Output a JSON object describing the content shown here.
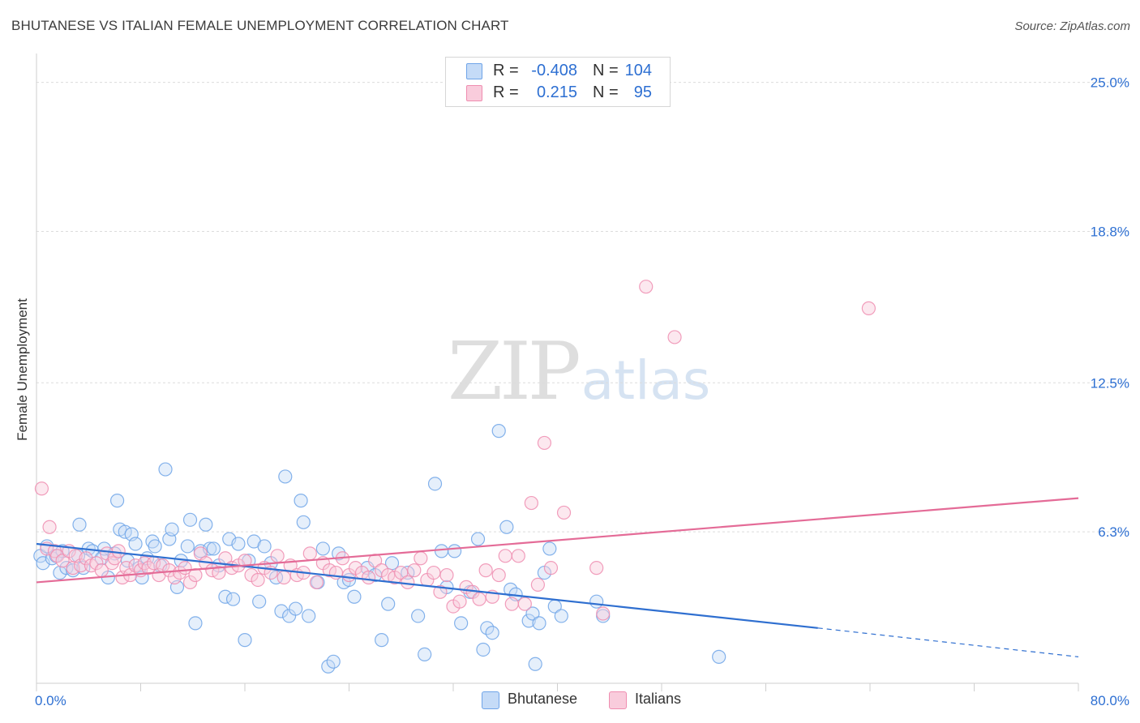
{
  "title": "BHUTANESE VS ITALIAN FEMALE UNEMPLOYMENT CORRELATION CHART",
  "source": "Source: ZipAtlas.com",
  "watermark": {
    "zip": "ZIP",
    "atlas": "atlas"
  },
  "legend": {
    "r_label": "R =",
    "n_label": "N =",
    "rows": [
      {
        "r": "-0.408",
        "n": "104",
        "color": "#6fa4e8",
        "fill": "#c5dbf7"
      },
      {
        "r": "0.215",
        "n": "95",
        "color": "#ef8db0",
        "fill": "#f9ccdc"
      }
    ]
  },
  "bottom_legend": [
    "Bhutanese",
    "Italians"
  ],
  "chart_data": {
    "type": "scatter",
    "title": "BHUTANESE VS ITALIAN FEMALE UNEMPLOYMENT CORRELATION CHART",
    "xlabel": "",
    "ylabel": "Female Unemployment",
    "xlim": [
      0,
      80
    ],
    "ylim": [
      0,
      26.2
    ],
    "x_tick_labels": [
      "0.0%",
      "80.0%"
    ],
    "y_ticks": [
      6.3,
      12.5,
      18.8,
      25.0
    ],
    "y_tick_labels": [
      "6.3%",
      "12.5%",
      "18.8%",
      "25.0%"
    ],
    "grid": true,
    "legend_position": "top-center",
    "series": [
      {
        "name": "Bhutanese",
        "color": "#6fa4e8",
        "fill": "#c5dbf7",
        "trend": {
          "x": [
            0,
            60,
            80
          ],
          "y": [
            5.8,
            2.3,
            1.1
          ],
          "solid_until": 60
        },
        "points": [
          [
            0.3,
            5.3
          ],
          [
            0.5,
            5.0
          ],
          [
            0.8,
            5.7
          ],
          [
            1.2,
            5.2
          ],
          [
            1.5,
            5.3
          ],
          [
            1.8,
            4.6
          ],
          [
            2.0,
            5.5
          ],
          [
            2.3,
            4.8
          ],
          [
            2.8,
            4.7
          ],
          [
            3.2,
            5.3
          ],
          [
            3.3,
            6.6
          ],
          [
            3.6,
            4.8
          ],
          [
            4.0,
            5.6
          ],
          [
            4.3,
            5.5
          ],
          [
            5.0,
            5.2
          ],
          [
            5.2,
            5.6
          ],
          [
            5.5,
            4.4
          ],
          [
            6.0,
            5.4
          ],
          [
            6.2,
            7.6
          ],
          [
            6.4,
            6.4
          ],
          [
            6.8,
            6.3
          ],
          [
            7.0,
            5.1
          ],
          [
            7.3,
            6.2
          ],
          [
            7.6,
            5.8
          ],
          [
            7.9,
            4.8
          ],
          [
            8.1,
            4.4
          ],
          [
            8.5,
            5.2
          ],
          [
            8.9,
            5.9
          ],
          [
            9.1,
            5.7
          ],
          [
            9.5,
            4.9
          ],
          [
            9.9,
            8.9
          ],
          [
            10.2,
            6.0
          ],
          [
            10.4,
            6.4
          ],
          [
            10.8,
            4.0
          ],
          [
            11.1,
            5.1
          ],
          [
            11.6,
            5.7
          ],
          [
            11.8,
            6.8
          ],
          [
            12.2,
            2.5
          ],
          [
            12.6,
            5.5
          ],
          [
            13.0,
            6.6
          ],
          [
            13.3,
            5.6
          ],
          [
            13.6,
            5.6
          ],
          [
            14.0,
            4.9
          ],
          [
            14.5,
            3.6
          ],
          [
            14.8,
            6.0
          ],
          [
            15.1,
            3.5
          ],
          [
            15.5,
            5.8
          ],
          [
            16.0,
            1.8
          ],
          [
            16.3,
            5.1
          ],
          [
            16.7,
            5.9
          ],
          [
            17.1,
            3.4
          ],
          [
            17.5,
            5.7
          ],
          [
            18.0,
            5.0
          ],
          [
            18.4,
            4.4
          ],
          [
            18.8,
            3.0
          ],
          [
            19.1,
            8.6
          ],
          [
            19.4,
            2.8
          ],
          [
            19.9,
            3.1
          ],
          [
            20.3,
            7.6
          ],
          [
            20.5,
            6.7
          ],
          [
            20.9,
            2.8
          ],
          [
            21.6,
            4.2
          ],
          [
            22.0,
            5.6
          ],
          [
            22.4,
            0.7
          ],
          [
            22.8,
            0.9
          ],
          [
            23.2,
            5.4
          ],
          [
            23.6,
            4.2
          ],
          [
            24.0,
            4.3
          ],
          [
            24.4,
            3.6
          ],
          [
            25.4,
            4.8
          ],
          [
            26.0,
            4.5
          ],
          [
            26.5,
            1.8
          ],
          [
            27.0,
            3.3
          ],
          [
            27.3,
            5.0
          ],
          [
            28.5,
            4.6
          ],
          [
            29.3,
            2.8
          ],
          [
            29.8,
            1.2
          ],
          [
            30.6,
            8.3
          ],
          [
            31.1,
            5.5
          ],
          [
            31.5,
            4.0
          ],
          [
            32.1,
            5.5
          ],
          [
            32.6,
            2.5
          ],
          [
            33.3,
            3.8
          ],
          [
            33.9,
            6.0
          ],
          [
            34.3,
            1.4
          ],
          [
            34.6,
            2.3
          ],
          [
            35.0,
            2.1
          ],
          [
            35.5,
            10.5
          ],
          [
            36.1,
            6.5
          ],
          [
            36.4,
            3.9
          ],
          [
            36.8,
            3.7
          ],
          [
            37.8,
            2.6
          ],
          [
            38.1,
            2.9
          ],
          [
            38.3,
            0.8
          ],
          [
            38.6,
            2.5
          ],
          [
            39.0,
            4.6
          ],
          [
            39.4,
            5.6
          ],
          [
            39.8,
            3.2
          ],
          [
            40.3,
            2.8
          ],
          [
            43.0,
            3.4
          ],
          [
            43.5,
            2.8
          ],
          [
            52.4,
            1.1
          ]
        ]
      },
      {
        "name": "Italians",
        "color": "#ef8db0",
        "fill": "#f9ccdc",
        "trend": {
          "x": [
            0,
            80
          ],
          "y": [
            4.2,
            7.7
          ]
        },
        "points": [
          [
            0.4,
            8.1
          ],
          [
            0.8,
            5.6
          ],
          [
            1.0,
            6.5
          ],
          [
            1.4,
            5.5
          ],
          [
            1.6,
            5.3
          ],
          [
            2.0,
            5.1
          ],
          [
            2.5,
            5.5
          ],
          [
            2.8,
            4.8
          ],
          [
            3.0,
            5.3
          ],
          [
            3.4,
            4.9
          ],
          [
            3.8,
            5.2
          ],
          [
            4.2,
            4.9
          ],
          [
            4.6,
            5.0
          ],
          [
            5.0,
            4.7
          ],
          [
            5.4,
            5.4
          ],
          [
            5.8,
            5.0
          ],
          [
            6.0,
            5.2
          ],
          [
            6.3,
            5.5
          ],
          [
            6.6,
            4.4
          ],
          [
            6.9,
            4.8
          ],
          [
            7.2,
            4.5
          ],
          [
            7.6,
            4.9
          ],
          [
            8.0,
            4.7
          ],
          [
            8.3,
            5.0
          ],
          [
            8.6,
            4.8
          ],
          [
            9.0,
            5.0
          ],
          [
            9.4,
            4.5
          ],
          [
            9.7,
            4.9
          ],
          [
            10.2,
            4.7
          ],
          [
            10.6,
            4.4
          ],
          [
            11.0,
            4.6
          ],
          [
            11.4,
            4.8
          ],
          [
            11.8,
            4.2
          ],
          [
            12.2,
            4.5
          ],
          [
            12.6,
            5.4
          ],
          [
            13.0,
            5.0
          ],
          [
            13.5,
            4.7
          ],
          [
            14.0,
            4.6
          ],
          [
            14.5,
            5.2
          ],
          [
            15.0,
            4.8
          ],
          [
            15.5,
            4.9
          ],
          [
            16.0,
            5.1
          ],
          [
            16.5,
            4.5
          ],
          [
            17.0,
            4.3
          ],
          [
            17.5,
            4.8
          ],
          [
            18.0,
            4.6
          ],
          [
            18.5,
            5.3
          ],
          [
            19.0,
            4.4
          ],
          [
            19.5,
            4.9
          ],
          [
            20.0,
            4.5
          ],
          [
            20.5,
            4.6
          ],
          [
            21.0,
            5.4
          ],
          [
            21.5,
            4.2
          ],
          [
            22.0,
            5.0
          ],
          [
            22.5,
            4.7
          ],
          [
            23.0,
            4.6
          ],
          [
            23.5,
            5.2
          ],
          [
            24.0,
            4.5
          ],
          [
            24.5,
            4.8
          ],
          [
            25.0,
            4.6
          ],
          [
            25.5,
            4.4
          ],
          [
            26.0,
            5.1
          ],
          [
            26.5,
            4.7
          ],
          [
            27.0,
            4.5
          ],
          [
            27.5,
            4.4
          ],
          [
            28.0,
            4.6
          ],
          [
            28.5,
            4.2
          ],
          [
            29.0,
            4.7
          ],
          [
            29.5,
            5.2
          ],
          [
            30.0,
            4.3
          ],
          [
            30.5,
            4.6
          ],
          [
            31.0,
            3.8
          ],
          [
            31.5,
            4.5
          ],
          [
            32.0,
            3.2
          ],
          [
            32.5,
            3.4
          ],
          [
            33.0,
            4.0
          ],
          [
            33.5,
            3.8
          ],
          [
            34.0,
            3.5
          ],
          [
            34.5,
            4.7
          ],
          [
            35.0,
            3.6
          ],
          [
            35.5,
            4.5
          ],
          [
            36.0,
            5.3
          ],
          [
            36.5,
            3.3
          ],
          [
            37.0,
            5.3
          ],
          [
            37.5,
            3.3
          ],
          [
            38.0,
            7.5
          ],
          [
            38.5,
            4.1
          ],
          [
            39.0,
            10.0
          ],
          [
            39.5,
            4.8
          ],
          [
            40.5,
            7.1
          ],
          [
            43.0,
            4.8
          ],
          [
            43.5,
            2.9
          ],
          [
            46.8,
            16.5
          ],
          [
            49.0,
            14.4
          ],
          [
            63.9,
            15.6
          ]
        ]
      }
    ]
  }
}
